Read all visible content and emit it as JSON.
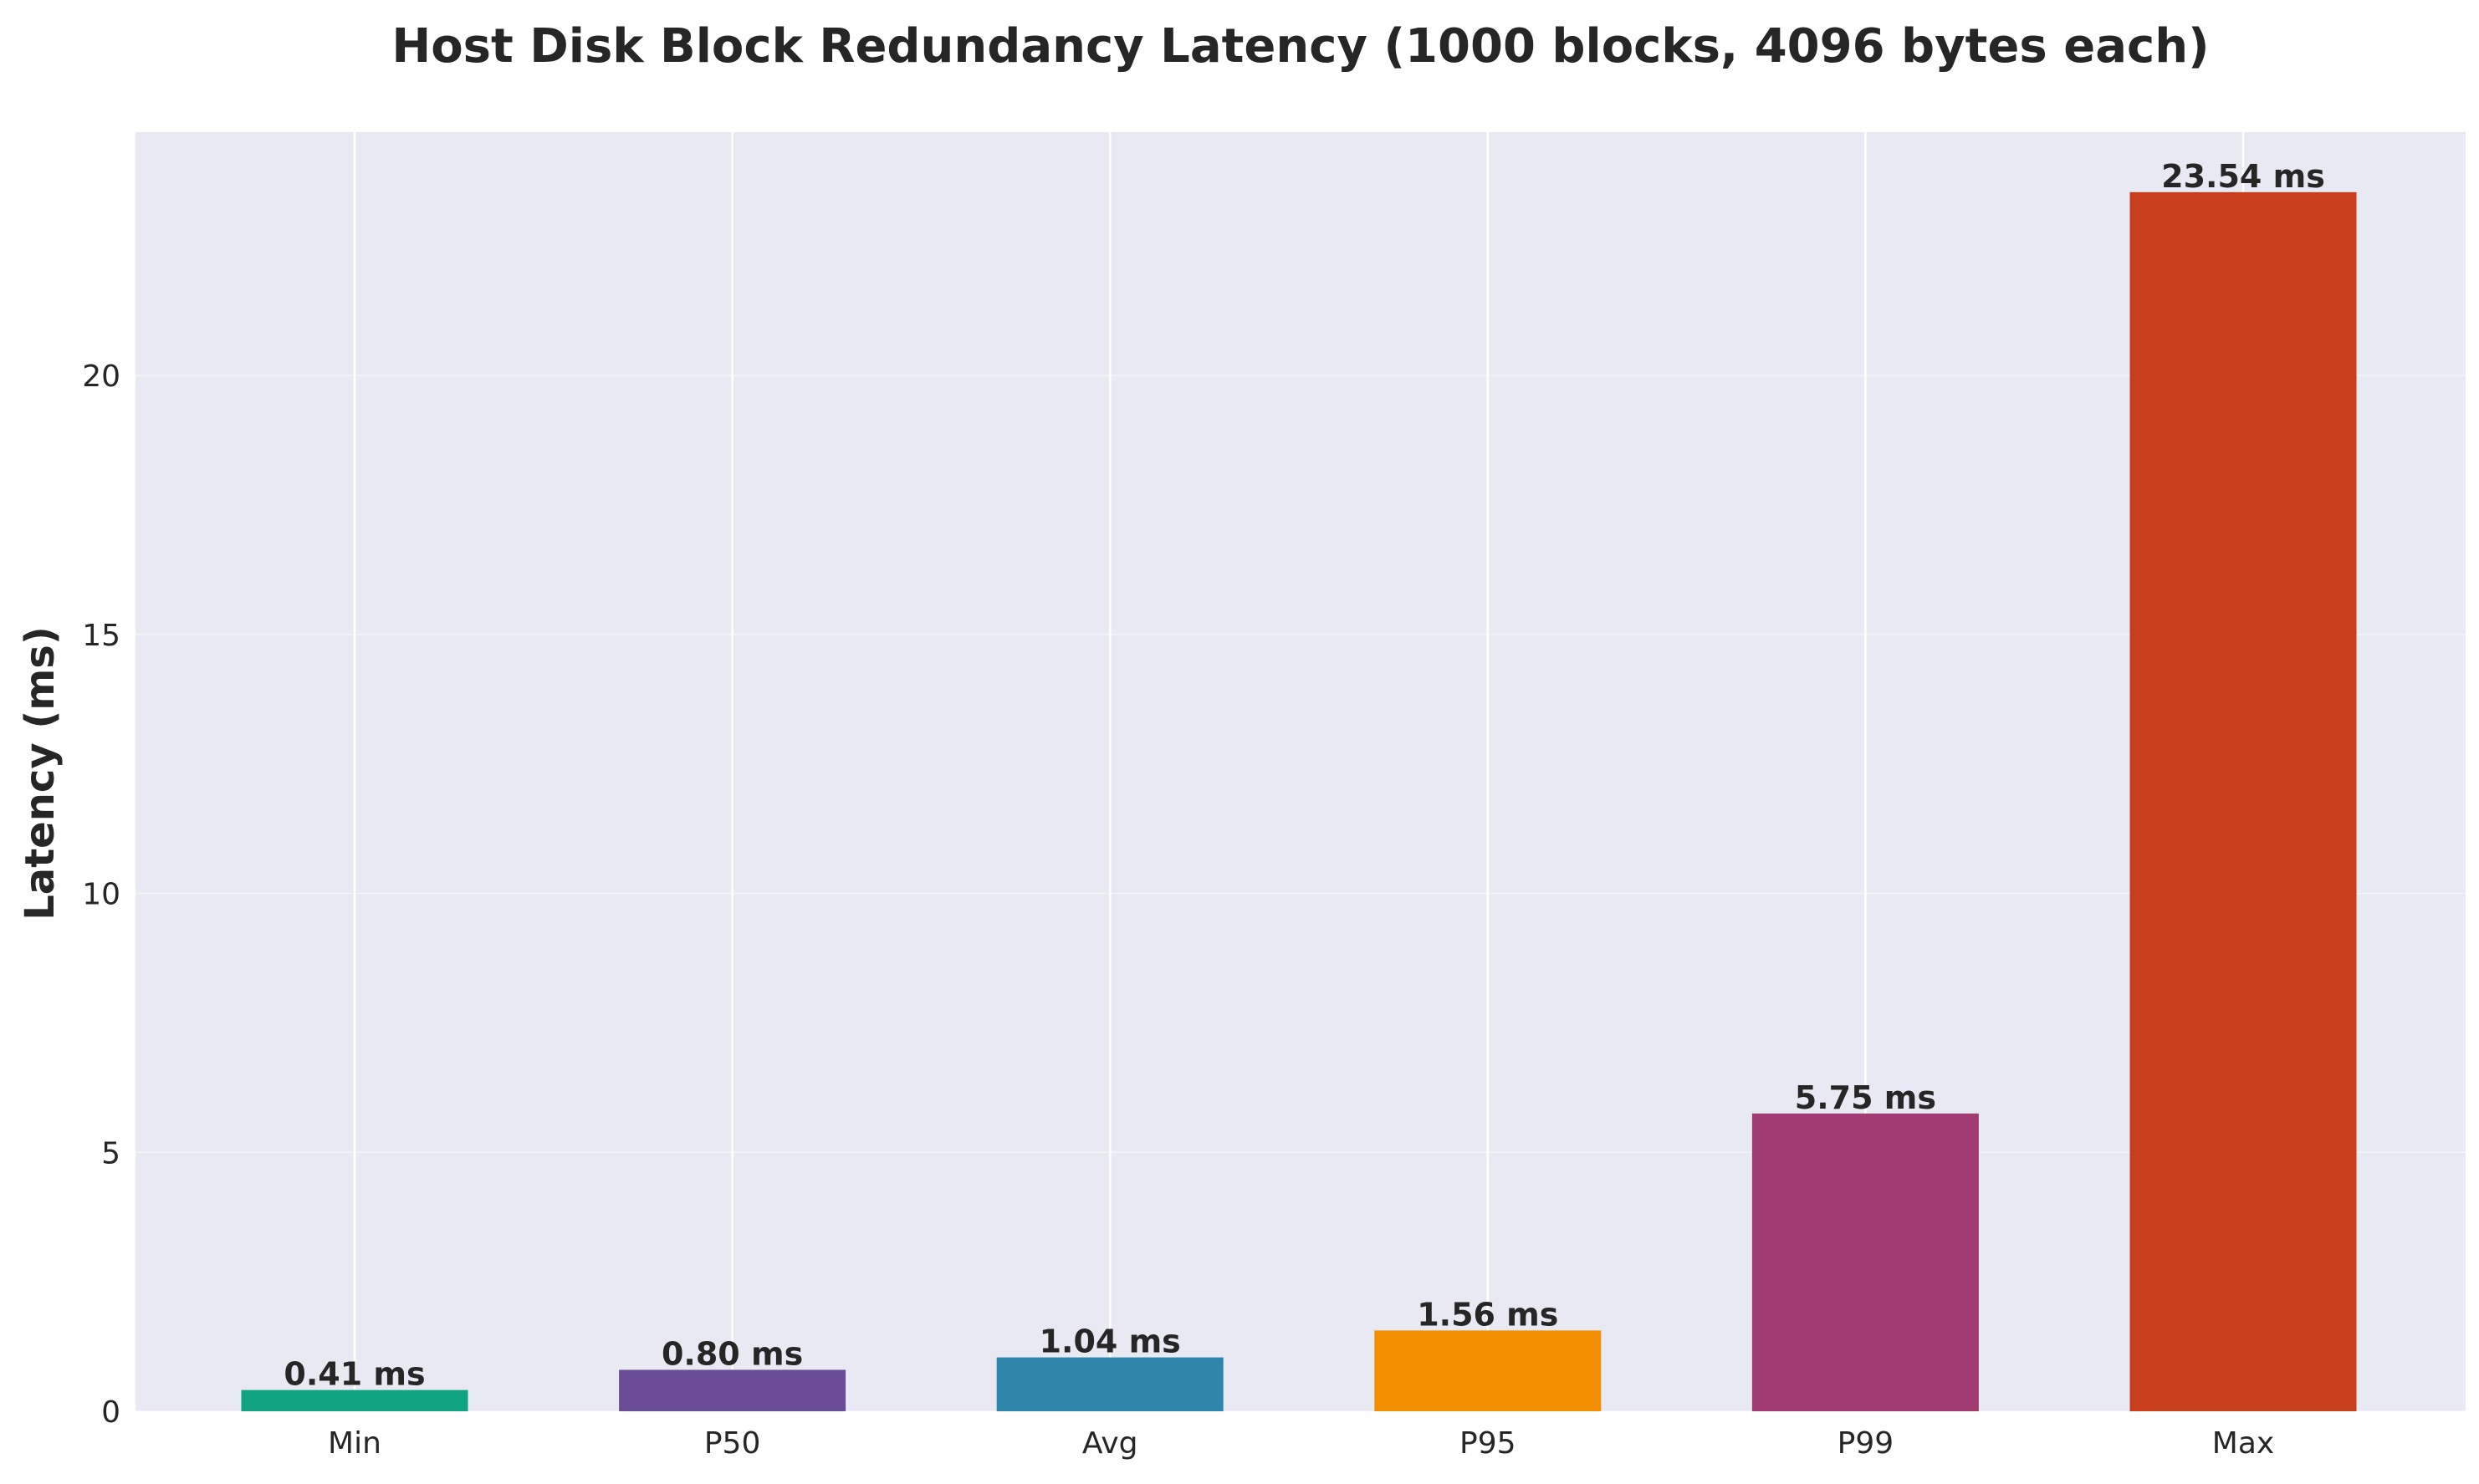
{
  "chart_data": {
    "type": "bar",
    "title": "Host Disk Block Redundancy Latency (1000 blocks, 4096 bytes each)",
    "xlabel": "",
    "ylabel": "Latency (ms)",
    "ylim": [
      0,
      24.7
    ],
    "yticks": [
      0,
      5,
      10,
      15,
      20
    ],
    "ytick_labels": [
      "0",
      "5",
      "10",
      "15",
      "20"
    ],
    "grid": true,
    "categories": [
      "Min",
      "P50",
      "Avg",
      "P95",
      "P99",
      "Max"
    ],
    "values": [
      0.41,
      0.8,
      1.04,
      1.56,
      5.75,
      23.54
    ],
    "data_labels": [
      "0.41 ms",
      "0.80 ms",
      "1.04 ms",
      "1.56 ms",
      "5.75 ms",
      "23.54 ms"
    ],
    "colors": [
      "#0fa37f",
      "#6b4c96",
      "#2e86ab",
      "#f18f01",
      "#a23b72",
      "#c73e1d"
    ]
  },
  "style": {
    "plot_background": "#e8e9f2",
    "grid_color": "#ffffff",
    "text_color": "#262626"
  }
}
